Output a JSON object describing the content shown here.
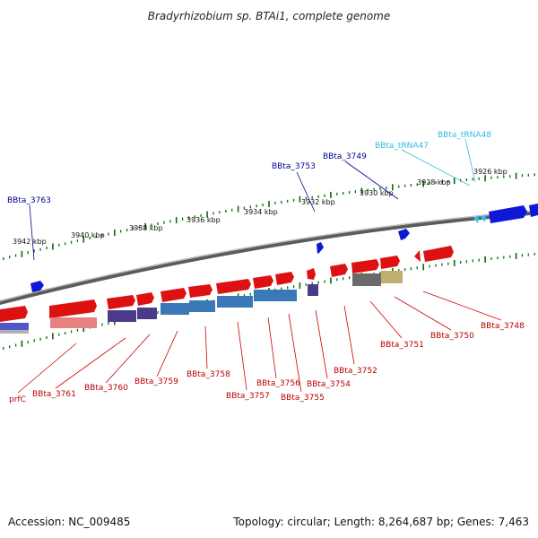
{
  "title": "Bradyrhizobium sp. BTAi1, complete genome",
  "footer": {
    "accession": "Accession: NC_009485",
    "summary": "Topology: circular; Length: 8,264,687 bp; Genes: 7,463"
  },
  "colors": {
    "forward_gene": "#dd1111",
    "reverse_blue": "#0a14cc",
    "trna": "#33bbdd",
    "label_red": "#bb0000",
    "label_blue": "#000099",
    "label_cyan": "#33bbdd",
    "tick": "#0a6a0a"
  },
  "kbp_ticks": [
    "3942 kbp",
    "3940 kbp",
    "3938 kbp",
    "3936 kbp",
    "3934 kbp",
    "3932 kbp",
    "3930 kbp",
    "3928 kbp",
    "3926 kbp"
  ],
  "top_labels": [
    {
      "text": "BBta_3763",
      "color": "blue"
    },
    {
      "text": "BBta_3753",
      "color": "blue"
    },
    {
      "text": "BBta_3749",
      "color": "blue"
    },
    {
      "text": "BBta_tRNA47",
      "color": "cyan"
    },
    {
      "text": "BBta_tRNA48",
      "color": "cyan"
    }
  ],
  "bottom_labels": [
    {
      "text": "prfC"
    },
    {
      "text": "BBta_3761"
    },
    {
      "text": "BBta_3760"
    },
    {
      "text": "BBta_3759"
    },
    {
      "text": "BBta_3758"
    },
    {
      "text": "BBta_3757"
    },
    {
      "text": "BBta_3756"
    },
    {
      "text": "BBta_3755"
    },
    {
      "text": "BBta_3754"
    },
    {
      "text": "BBta_3752"
    },
    {
      "text": "BBta_3751"
    },
    {
      "text": "BBta_3750"
    },
    {
      "text": "BBta_3748"
    }
  ]
}
